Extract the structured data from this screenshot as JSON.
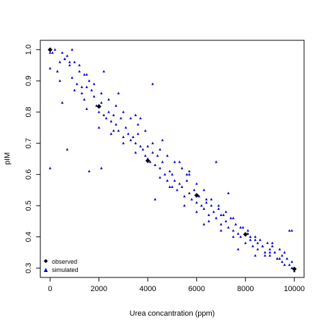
{
  "chart_data": {
    "type": "scatter",
    "title": "",
    "xlabel": "Urea concantration (ppm)",
    "ylabel": "pIM",
    "xlim": [
      -400,
      10400
    ],
    "ylim": [
      0.27,
      1.03
    ],
    "xticks": [
      0,
      2000,
      4000,
      6000,
      8000,
      10000
    ],
    "yticks": [
      0.3,
      0.4,
      0.5,
      0.6,
      0.7,
      0.8,
      0.9,
      1.0
    ],
    "xtick_labels": [
      "0",
      "2000",
      "4000",
      "6000",
      "8000",
      "10000"
    ],
    "ytick_labels": [
      "0.3",
      "0.4",
      "0.5",
      "0.6",
      "0.7",
      "0.8",
      "0.9",
      "1.0"
    ],
    "grid": false,
    "legend": {
      "placement": "bottom-left",
      "entries": [
        {
          "label": "observed",
          "marker": "diamond",
          "color": "#000000"
        },
        {
          "label": "simulated",
          "marker": "triangle",
          "color": "#0000cc"
        }
      ]
    },
    "series": [
      {
        "name": "observed",
        "marker": "diamond",
        "color": "#000000",
        "x": [
          0,
          2000,
          4000,
          6000,
          8000,
          10000
        ],
        "y": [
          1.0,
          0.818,
          0.644,
          0.533,
          0.408,
          0.297
        ]
      },
      {
        "name": "simulated",
        "marker": "triangle",
        "color": "#0000cc",
        "x": [
          0,
          0,
          100,
          200,
          300,
          400,
          500,
          500,
          600,
          700,
          800,
          900,
          1000,
          1000,
          1100,
          1200,
          1300,
          1400,
          1500,
          1500,
          1600,
          1700,
          1800,
          1900,
          2000,
          2000,
          2100,
          2200,
          2300,
          2400,
          2500,
          2500,
          2600,
          2700,
          2800,
          2900,
          3000,
          3000,
          3100,
          3200,
          3300,
          3400,
          3500,
          3500,
          3600,
          3700,
          3800,
          3900,
          4000,
          4000,
          4100,
          4200,
          4300,
          4400,
          4500,
          4500,
          4600,
          4700,
          4800,
          4900,
          5000,
          5000,
          5100,
          5200,
          5300,
          5400,
          5500,
          5500,
          5600,
          5700,
          5800,
          5900,
          6000,
          6000,
          6100,
          6200,
          6300,
          6400,
          6500,
          6500,
          6600,
          6700,
          6800,
          6900,
          7000,
          7000,
          7100,
          7200,
          7300,
          7400,
          7500,
          7500,
          7600,
          7700,
          7800,
          7900,
          8000,
          8000,
          8100,
          8200,
          8300,
          8400,
          8500,
          8500,
          8600,
          8700,
          8800,
          8900,
          9000,
          9000,
          9100,
          9200,
          9300,
          9400,
          9500,
          9500,
          9600,
          9700,
          9800,
          9900,
          10000,
          10000,
          300,
          600,
          900,
          1200,
          1500,
          1800,
          2100,
          2400,
          2700,
          3000,
          3300,
          3600,
          3900,
          4200,
          4500,
          4800,
          5100,
          5400,
          5700,
          6000,
          6300,
          6600,
          6900,
          7200,
          7500,
          7800,
          8100,
          8400,
          8700,
          9000,
          9300,
          9600,
          9900,
          700,
          1400,
          2100,
          2800,
          3500,
          4200,
          4900,
          5600,
          6300,
          7000,
          7700,
          8400,
          9100,
          9800,
          400,
          1300,
          2600,
          3700,
          4600,
          5300,
          6400,
          7300,
          8200,
          9400,
          0,
          800,
          1600,
          2200,
          4300,
          5700,
          6800,
          8800,
          9900
        ],
        "y": [
          0.94,
          0.62,
          0.99,
          1.0,
          0.93,
          0.96,
          0.99,
          0.83,
          0.97,
          0.98,
          0.95,
          0.91,
          0.96,
          0.87,
          0.89,
          0.93,
          0.86,
          0.92,
          0.88,
          0.81,
          0.9,
          0.87,
          0.85,
          0.82,
          0.8,
          0.75,
          0.83,
          0.79,
          0.78,
          0.8,
          0.77,
          0.73,
          0.79,
          0.76,
          0.74,
          0.78,
          0.72,
          0.7,
          0.75,
          0.73,
          0.71,
          0.72,
          0.7,
          0.67,
          0.73,
          0.69,
          0.68,
          0.66,
          0.65,
          0.69,
          0.64,
          0.67,
          0.63,
          0.66,
          0.62,
          0.59,
          0.64,
          0.6,
          0.58,
          0.61,
          0.6,
          0.56,
          0.58,
          0.55,
          0.57,
          0.56,
          0.53,
          0.5,
          0.58,
          0.54,
          0.52,
          0.55,
          0.51,
          0.48,
          0.53,
          0.5,
          0.49,
          0.52,
          0.47,
          0.45,
          0.5,
          0.48,
          0.46,
          0.49,
          0.44,
          0.42,
          0.47,
          0.45,
          0.43,
          0.46,
          0.42,
          0.4,
          0.44,
          0.41,
          0.4,
          0.43,
          0.41,
          0.38,
          0.42,
          0.39,
          0.37,
          0.4,
          0.38,
          0.36,
          0.39,
          0.37,
          0.35,
          0.38,
          0.36,
          0.34,
          0.37,
          0.35,
          0.33,
          0.36,
          0.34,
          0.32,
          0.35,
          0.33,
          0.31,
          0.32,
          0.3,
          0.29,
          0.93,
          0.97,
          1.0,
          0.95,
          0.92,
          0.89,
          0.86,
          0.84,
          0.82,
          0.8,
          0.78,
          0.76,
          0.74,
          0.7,
          0.68,
          0.66,
          0.64,
          0.62,
          0.6,
          0.57,
          0.55,
          0.52,
          0.5,
          0.48,
          0.46,
          0.43,
          0.41,
          0.39,
          0.37,
          0.35,
          0.33,
          0.31,
          0.3,
          0.68,
          0.84,
          0.62,
          0.86,
          0.79,
          0.89,
          0.56,
          0.6,
          0.44,
          0.47,
          0.36,
          0.34,
          0.38,
          0.42,
          0.9,
          0.88,
          0.74,
          0.78,
          0.71,
          0.64,
          0.51,
          0.54,
          0.4,
          0.33,
          0.99,
          0.96,
          0.61,
          0.93,
          0.52,
          0.61,
          0.64,
          0.34,
          0.42
        ]
      }
    ]
  }
}
